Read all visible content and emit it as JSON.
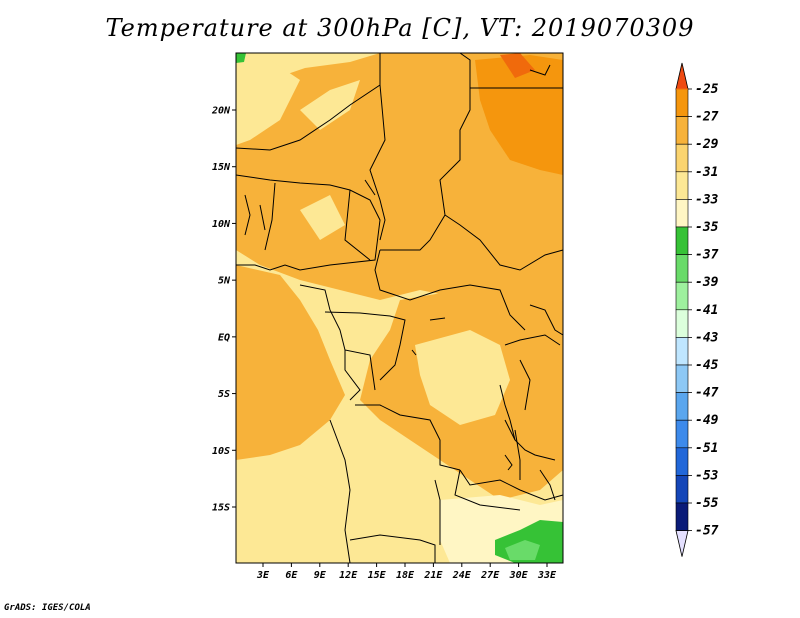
{
  "title": "Temperature at 300hPa [C], VT: 2019070309",
  "credit": "GrADS: IGES/COLA",
  "map": {
    "lat_labels": [
      "20N",
      "15N",
      "10N",
      "5N",
      "EQ",
      "5S",
      "10S",
      "15S"
    ],
    "lat_values": [
      20,
      15,
      10,
      5,
      0,
      -5,
      -10,
      -15
    ],
    "lon_labels": [
      "3E",
      "6E",
      "9E",
      "12E",
      "15E",
      "18E",
      "21E",
      "24E",
      "27E",
      "30E",
      "33E"
    ],
    "lon_values": [
      3,
      6,
      9,
      12,
      15,
      18,
      21,
      24,
      27,
      30,
      33
    ]
  },
  "colorbar": {
    "labels": [
      "-25",
      "-27",
      "-29",
      "-31",
      "-33",
      "-35",
      "-37",
      "-39",
      "-41",
      "-43",
      "-45",
      "-47",
      "-49",
      "-51",
      "-53",
      "-55",
      "-57"
    ],
    "colors": [
      "#f06a0c",
      "#f5960d",
      "#f7b23a",
      "#fbd46f",
      "#fde895",
      "#fff6c4",
      "#36c236",
      "#69db69",
      "#9ef09e",
      "#dcffdc",
      "#bfe6ff",
      "#8dc8f5",
      "#5aa6ee",
      "#3d8aeb",
      "#2167d9",
      "#1446b8",
      "#0a1b78"
    ],
    "top_color": "#ee4a12",
    "bottom_color": "#e4e0ff"
  }
}
